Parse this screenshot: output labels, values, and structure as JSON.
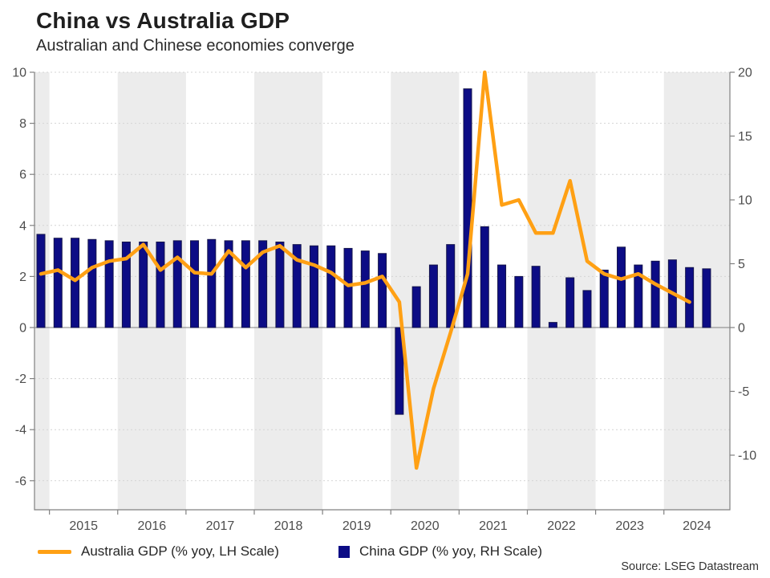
{
  "header": {
    "title": "China vs Australia GDP",
    "subtitle": "Australian and Chinese economies converge"
  },
  "legend": [
    {
      "label": "Australia GDP (% yoy, LH Scale)",
      "color": "#FFA014",
      "type": "line"
    },
    {
      "label": "China GDP (% yoy, RH Scale)",
      "color": "#0c0c85",
      "type": "bar"
    }
  ],
  "source": "Source: LSEG Datastream",
  "chart_data": {
    "type": "bar",
    "subtype": "dual-axis bar + line, quarterly",
    "title": "China vs Australia GDP",
    "subtitle": "Australian and Chinese economies converge",
    "x_year_labels": [
      "2015",
      "2016",
      "2017",
      "2018",
      "2019",
      "2020",
      "2021",
      "2022",
      "2023",
      "2024"
    ],
    "shaded_years": [
      2014,
      2016,
      2018,
      2020,
      2022,
      2024
    ],
    "quarters": [
      "2014Q4",
      "2015Q1",
      "2015Q2",
      "2015Q3",
      "2015Q4",
      "2016Q1",
      "2016Q2",
      "2016Q3",
      "2016Q4",
      "2017Q1",
      "2017Q2",
      "2017Q3",
      "2017Q4",
      "2018Q1",
      "2018Q2",
      "2018Q3",
      "2018Q4",
      "2019Q1",
      "2019Q2",
      "2019Q3",
      "2019Q4",
      "2020Q1",
      "2020Q2",
      "2020Q3",
      "2020Q4",
      "2021Q1",
      "2021Q2",
      "2021Q3",
      "2021Q4",
      "2022Q1",
      "2022Q2",
      "2022Q3",
      "2022Q4",
      "2023Q1",
      "2023Q2",
      "2023Q3",
      "2023Q4",
      "2024Q1",
      "2024Q2",
      "2024Q3"
    ],
    "series": [
      {
        "name": "Australia GDP (% yoy, LH Scale)",
        "type": "line",
        "axis": "left",
        "color": "#FFA014",
        "values": [
          2.1,
          2.25,
          1.85,
          2.35,
          2.6,
          2.7,
          3.25,
          2.25,
          2.75,
          2.15,
          2.1,
          3.0,
          2.35,
          2.95,
          3.2,
          2.65,
          2.45,
          2.15,
          1.65,
          1.75,
          2.0,
          1.0,
          -5.5,
          -2.4,
          -0.2,
          2.1,
          10.0,
          4.8,
          5.0,
          3.7,
          3.7,
          5.75,
          2.6,
          2.1,
          1.9,
          2.1,
          1.7,
          1.35,
          1.0,
          null
        ]
      },
      {
        "name": "China GDP (% yoy, RH Scale)",
        "type": "bar",
        "axis": "right",
        "color": "#0c0c85",
        "values": [
          7.3,
          7.0,
          7.0,
          6.9,
          6.8,
          6.7,
          6.7,
          6.7,
          6.8,
          6.8,
          6.9,
          6.8,
          6.8,
          6.8,
          6.7,
          6.5,
          6.4,
          6.4,
          6.2,
          6.0,
          5.8,
          -6.8,
          3.2,
          4.9,
          6.5,
          18.7,
          7.9,
          4.9,
          4.0,
          4.8,
          0.4,
          3.9,
          2.9,
          4.5,
          6.3,
          4.9,
          5.2,
          5.3,
          4.7,
          4.6
        ]
      }
    ],
    "left_axis": {
      "ticks": [
        10,
        8,
        6,
        4,
        2,
        0,
        -2,
        -4,
        -6
      ],
      "gridlines": [
        10,
        8,
        6,
        4,
        2,
        -2,
        -4,
        -6
      ],
      "range": [
        -7.14,
        10
      ]
    },
    "right_axis": {
      "ticks": [
        20,
        15,
        10,
        5,
        0,
        -5,
        -10
      ],
      "range": [
        -14.28,
        20
      ]
    },
    "grid": "horizontal dashed",
    "legend_position": "bottom",
    "colors": {
      "band": "#ececec",
      "axis": "#808080",
      "gridline": "#d4d4d4",
      "tick_text": "#4d4d4d"
    }
  }
}
